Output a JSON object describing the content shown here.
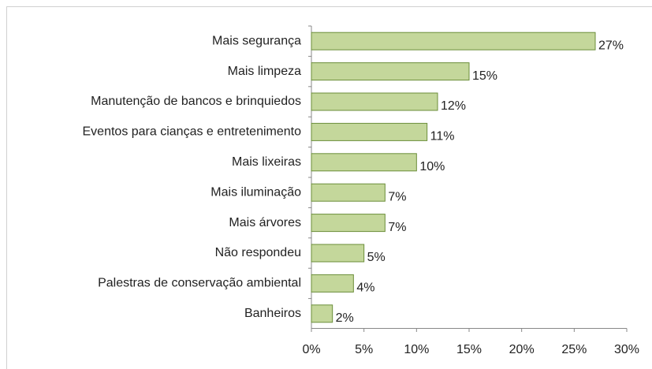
{
  "chart_data": {
    "type": "bar",
    "orientation": "horizontal",
    "categories": [
      "Mais segurança",
      "Mais limpeza",
      "Manutenção de bancos e brinquiedos",
      "Eventos para cianças e entretenimento",
      "Mais lixeiras",
      "Mais iluminação",
      "Mais árvores",
      "Não respondeu",
      "Palestras de conservação ambiental",
      "Banheiros"
    ],
    "values": [
      27,
      15,
      12,
      11,
      10,
      7,
      7,
      5,
      4,
      2
    ],
    "value_labels": [
      "27%",
      "15%",
      "12%",
      "11%",
      "10%",
      "7%",
      "7%",
      "5%",
      "4%",
      "2%"
    ],
    "color": "#c4d79b",
    "edge_color": "#6b8e3a",
    "xlim": [
      0,
      30
    ],
    "xticks": [
      {
        "value": 0,
        "label": "0%"
      },
      {
        "value": 5,
        "label": "5%"
      },
      {
        "value": 10,
        "label": "10%"
      },
      {
        "value": 15,
        "label": "15%"
      },
      {
        "value": 20,
        "label": "20%"
      },
      {
        "value": 25,
        "label": "25%"
      },
      {
        "value": 30,
        "label": "30%"
      }
    ],
    "grid": false
  }
}
